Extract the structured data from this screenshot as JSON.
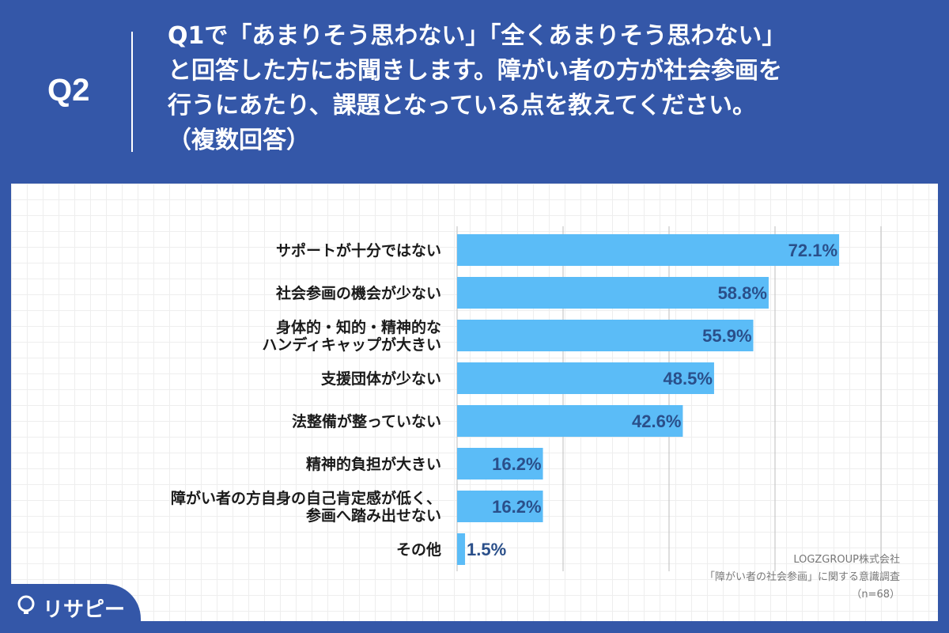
{
  "header": {
    "question_number": "Q2",
    "question_text": "Q1で「あまりそう思わない」「全くあまりそう思わない」\nと回答した方にお聞きします。障がい者の方が社会参画を\n行うにあたり、課題となっている点を教えてください。\n（複数回答）"
  },
  "colors": {
    "header_bg": "#3457a8",
    "bar": "#5bbcf7",
    "value_text": "#2a4f8a"
  },
  "chart_data": {
    "type": "bar",
    "orientation": "horizontal",
    "categories": [
      [
        "サポートが十分ではない"
      ],
      [
        "社会参画の機会が少ない"
      ],
      [
        "身体的・知的・精神的な",
        "ハンディキャップが大きい"
      ],
      [
        "支援団体が少ない"
      ],
      [
        "法整備が整っていない"
      ],
      [
        "精神的負担が大きい"
      ],
      [
        "障がい者の方自身の自己肯定感が低く、",
        "参画へ踏み出せない"
      ],
      [
        "その他"
      ]
    ],
    "values": [
      72.1,
      58.8,
      55.9,
      48.5,
      42.6,
      16.2,
      16.2,
      1.5
    ],
    "value_labels": [
      "72.1%",
      "58.8%",
      "55.9%",
      "48.5%",
      "42.6%",
      "16.2%",
      "16.2%",
      "1.5%"
    ],
    "xlim": [
      0,
      90
    ],
    "grid_step": 20,
    "grid": true,
    "legend": "none"
  },
  "credit": {
    "company": "LOGZGROUP株式会社",
    "survey": "「障がい者の社会参画」に関する意識調査",
    "sample": "（n=68）"
  },
  "brand": {
    "name": "リサピー",
    "icon": "lightbulb-icon"
  }
}
